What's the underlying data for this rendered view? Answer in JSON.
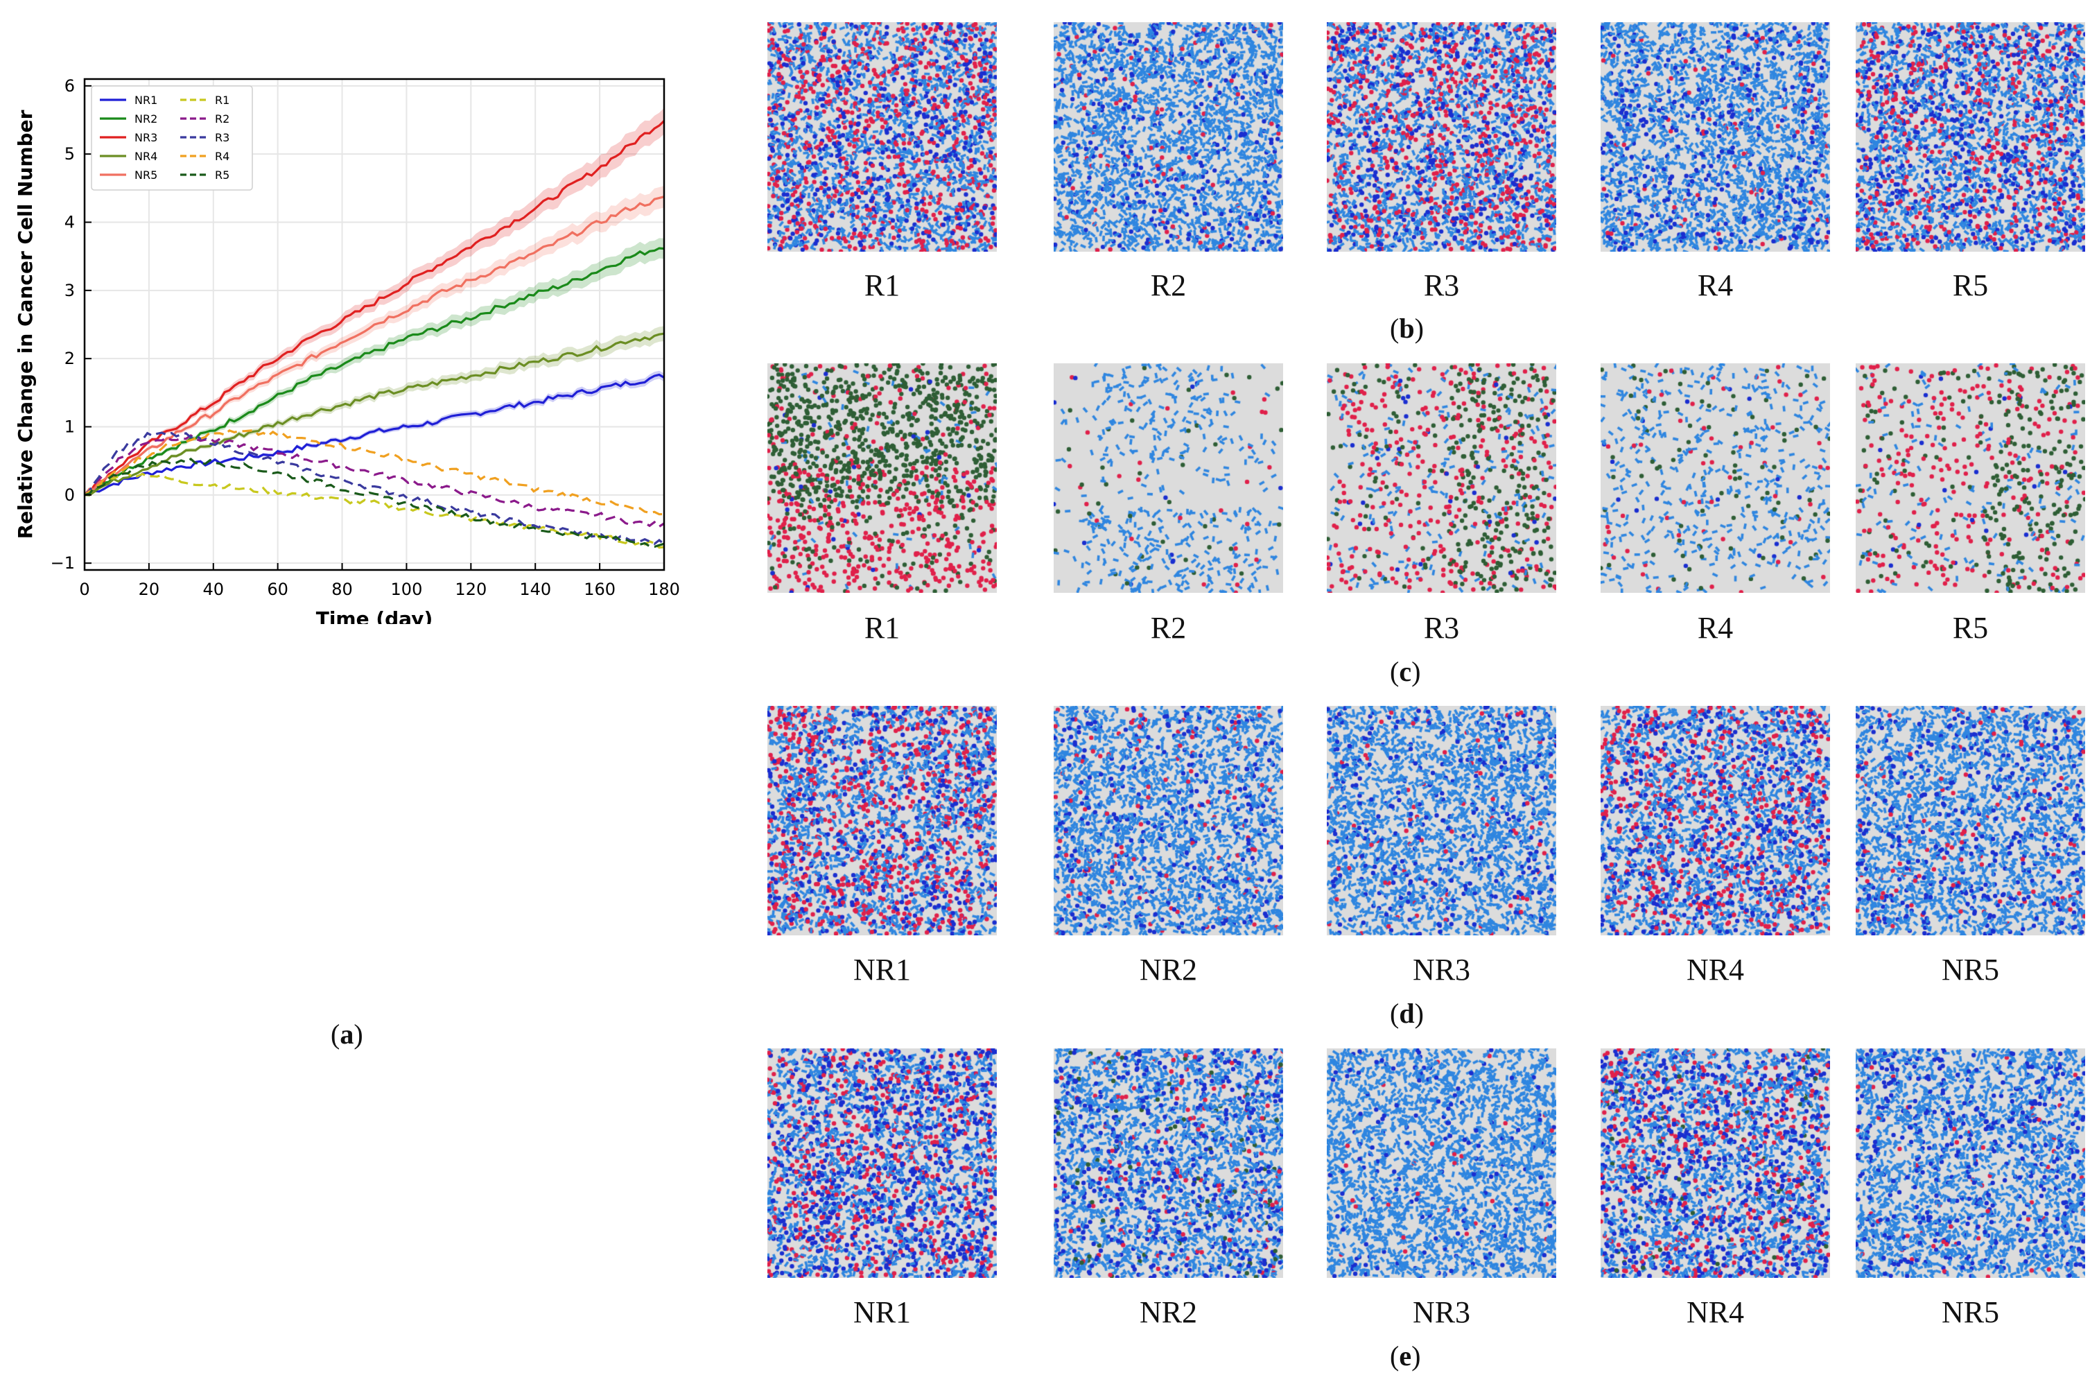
{
  "panel_captions": {
    "a": "a",
    "b": "b",
    "c": "c",
    "d": "d",
    "e": "e"
  },
  "chart_data": {
    "type": "line",
    "title": "",
    "xlabel": "Time (day)",
    "ylabel": "Relative Change in Cancer Cell Number",
    "xlim": [
      0,
      180
    ],
    "ylim": [
      -1.1,
      6.1
    ],
    "xticks": [
      0,
      20,
      40,
      60,
      80,
      100,
      120,
      140,
      160,
      180
    ],
    "yticks": [
      -1,
      0,
      1,
      2,
      3,
      4,
      5,
      6
    ],
    "grid": true,
    "legend_position": "top-left",
    "x": [
      0,
      10,
      20,
      30,
      40,
      50,
      60,
      70,
      80,
      90,
      100,
      110,
      120,
      130,
      140,
      150,
      160,
      170,
      180
    ],
    "series": [
      {
        "name": "NR1",
        "color": "#1f1fd6",
        "dash": false,
        "band": 0.05,
        "values": [
          0,
          0.18,
          0.32,
          0.42,
          0.48,
          0.55,
          0.62,
          0.72,
          0.82,
          0.92,
          1.0,
          1.08,
          1.18,
          1.28,
          1.36,
          1.46,
          1.56,
          1.65,
          1.75
        ]
      },
      {
        "name": "NR2",
        "color": "#1a8a1a",
        "dash": false,
        "band": 0.14,
        "values": [
          0,
          0.3,
          0.55,
          0.75,
          0.95,
          1.2,
          1.45,
          1.7,
          1.9,
          2.1,
          2.3,
          2.45,
          2.6,
          2.78,
          2.95,
          3.1,
          3.3,
          3.5,
          3.65
        ]
      },
      {
        "name": "NR3",
        "color": "#e02020",
        "dash": false,
        "band": 0.18,
        "values": [
          0,
          0.4,
          0.75,
          1.05,
          1.35,
          1.7,
          2.0,
          2.3,
          2.55,
          2.82,
          3.1,
          3.38,
          3.65,
          3.92,
          4.2,
          4.5,
          4.8,
          5.15,
          5.5
        ]
      },
      {
        "name": "NR4",
        "color": "#6b8e23",
        "dash": false,
        "band": 0.1,
        "values": [
          0,
          0.22,
          0.42,
          0.6,
          0.75,
          0.9,
          1.05,
          1.2,
          1.32,
          1.45,
          1.55,
          1.65,
          1.75,
          1.85,
          1.95,
          2.05,
          2.15,
          2.28,
          2.35
        ]
      },
      {
        "name": "NR5",
        "color": "#f07060",
        "dash": false,
        "band": 0.15,
        "values": [
          0,
          0.35,
          0.65,
          0.95,
          1.2,
          1.5,
          1.75,
          2.0,
          2.25,
          2.5,
          2.72,
          2.95,
          3.15,
          3.35,
          3.55,
          3.78,
          4.0,
          4.22,
          4.35
        ]
      },
      {
        "name": "R1",
        "color": "#c8c81e",
        "dash": true,
        "band": 0,
        "values": [
          0,
          0.3,
          0.3,
          0.2,
          0.15,
          0.08,
          0.05,
          -0.02,
          -0.08,
          -0.12,
          -0.2,
          -0.28,
          -0.35,
          -0.42,
          -0.48,
          -0.55,
          -0.62,
          -0.68,
          -0.75
        ]
      },
      {
        "name": "R2",
        "color": "#8b1a8b",
        "dash": true,
        "band": 0,
        "values": [
          0,
          0.5,
          0.8,
          0.85,
          0.8,
          0.72,
          0.62,
          0.52,
          0.42,
          0.32,
          0.22,
          0.12,
          0.02,
          -0.08,
          -0.18,
          -0.25,
          -0.3,
          -0.4,
          -0.45
        ]
      },
      {
        "name": "R3",
        "color": "#3a3a9e",
        "dash": true,
        "band": 0,
        "values": [
          0,
          0.65,
          0.88,
          0.88,
          0.78,
          0.62,
          0.48,
          0.35,
          0.22,
          0.1,
          -0.02,
          -0.15,
          -0.25,
          -0.35,
          -0.45,
          -0.52,
          -0.6,
          -0.66,
          -0.7
        ]
      },
      {
        "name": "R4",
        "color": "#f0a020",
        "dash": true,
        "band": 0,
        "values": [
          0,
          0.35,
          0.6,
          0.8,
          0.9,
          0.92,
          0.88,
          0.8,
          0.72,
          0.62,
          0.52,
          0.4,
          0.3,
          0.2,
          0.08,
          0.0,
          -0.1,
          -0.2,
          -0.32
        ]
      },
      {
        "name": "R5",
        "color": "#1a5a1a",
        "dash": true,
        "band": 0,
        "values": [
          0,
          0.3,
          0.45,
          0.5,
          0.48,
          0.42,
          0.32,
          0.22,
          0.1,
          -0.02,
          -0.12,
          -0.22,
          -0.32,
          -0.42,
          -0.5,
          -0.56,
          -0.62,
          -0.68,
          -0.74
        ]
      }
    ]
  },
  "rows": [
    {
      "id": "b",
      "labels": [
        "R1",
        "R2",
        "R3",
        "R4",
        "R5"
      ]
    },
    {
      "id": "c",
      "labels": [
        "R1",
        "R2",
        "R3",
        "R4",
        "R5"
      ]
    },
    {
      "id": "d",
      "labels": [
        "NR1",
        "NR2",
        "NR3",
        "NR4",
        "NR5"
      ]
    },
    {
      "id": "e",
      "labels": [
        "NR1",
        "NR2",
        "NR3",
        "NR4",
        "NR5"
      ]
    }
  ],
  "cell_colors": {
    "light_blue": "#2f86e0",
    "dark_blue": "#1a2ed0",
    "red": "#e0204a",
    "green": "#2e5e35",
    "background": "#dcdcdc"
  }
}
